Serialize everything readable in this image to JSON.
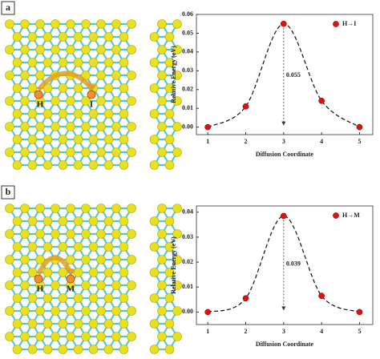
{
  "panels": [
    {
      "label": "a",
      "sites": [
        "H",
        "I"
      ]
    },
    {
      "label": "b",
      "sites": [
        "H",
        "M"
      ]
    }
  ],
  "chart_data": [
    {
      "type": "scatter",
      "x": [
        1,
        2,
        3,
        4,
        5
      ],
      "series": [
        {
          "name": "H→I",
          "color": "#e01010",
          "values": [
            0,
            0.011,
            0.055,
            0.014,
            0.0
          ]
        }
      ],
      "xlabel": "Diffusion Coordinate",
      "ylabel": "Relative Energy (eV)",
      "annotation": "0.055",
      "xlim": [
        0.7,
        5.35
      ],
      "ylim": [
        -0.004,
        0.06
      ],
      "xticks": [
        1,
        2,
        3,
        4,
        5
      ],
      "yticks": [
        {
          "value": 0,
          "label": "0.00"
        },
        {
          "value": 0.01,
          "label": "0.01"
        },
        {
          "value": 0.02,
          "label": "0.02"
        },
        {
          "value": 0.03,
          "label": "0.03"
        },
        {
          "value": 0.04,
          "label": "0.04"
        },
        {
          "value": 0.05,
          "label": "0.05"
        },
        {
          "value": 0.06,
          "label": "0.06"
        }
      ],
      "legend": "upper right"
    },
    {
      "type": "scatter",
      "x": [
        1,
        2,
        3,
        4,
        5
      ],
      "series": [
        {
          "name": "H→M",
          "color": "#e01010",
          "values": [
            0,
            0.0055,
            0.0385,
            0.0065,
            0.0
          ]
        }
      ],
      "xlabel": "Diffusion Coordinate",
      "ylabel": "Relative Energy (eV)",
      "annotation": "0.039",
      "xlim": [
        0.7,
        5.35
      ],
      "ylim": [
        -0.005,
        0.0425
      ],
      "xticks": [
        1,
        2,
        3,
        4,
        5
      ],
      "yticks": [
        {
          "value": 0,
          "label": "0.00"
        },
        {
          "value": 0.01,
          "label": "0.01"
        },
        {
          "value": 0.02,
          "label": "0.02"
        },
        {
          "value": 0.03,
          "label": "0.03"
        },
        {
          "value": 0.04,
          "label": "0.04"
        }
      ],
      "legend": "upper right"
    }
  ]
}
